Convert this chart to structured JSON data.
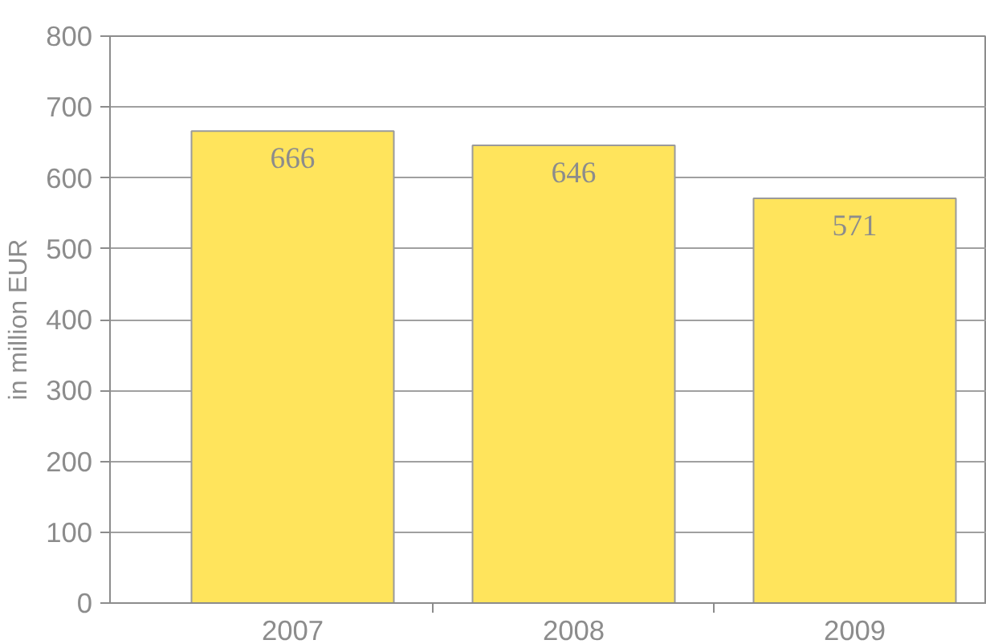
{
  "chart_data": {
    "type": "bar",
    "ylabel": "in million EUR",
    "categories": [
      "2007",
      "2008",
      "2009"
    ],
    "values": [
      666,
      646,
      571
    ],
    "color": "#ffe45c",
    "ylim": [
      0,
      800
    ],
    "yticks": [
      0,
      100,
      200,
      300,
      400,
      500,
      600,
      700,
      800
    ],
    "grid": "y",
    "data_labels": true
  }
}
